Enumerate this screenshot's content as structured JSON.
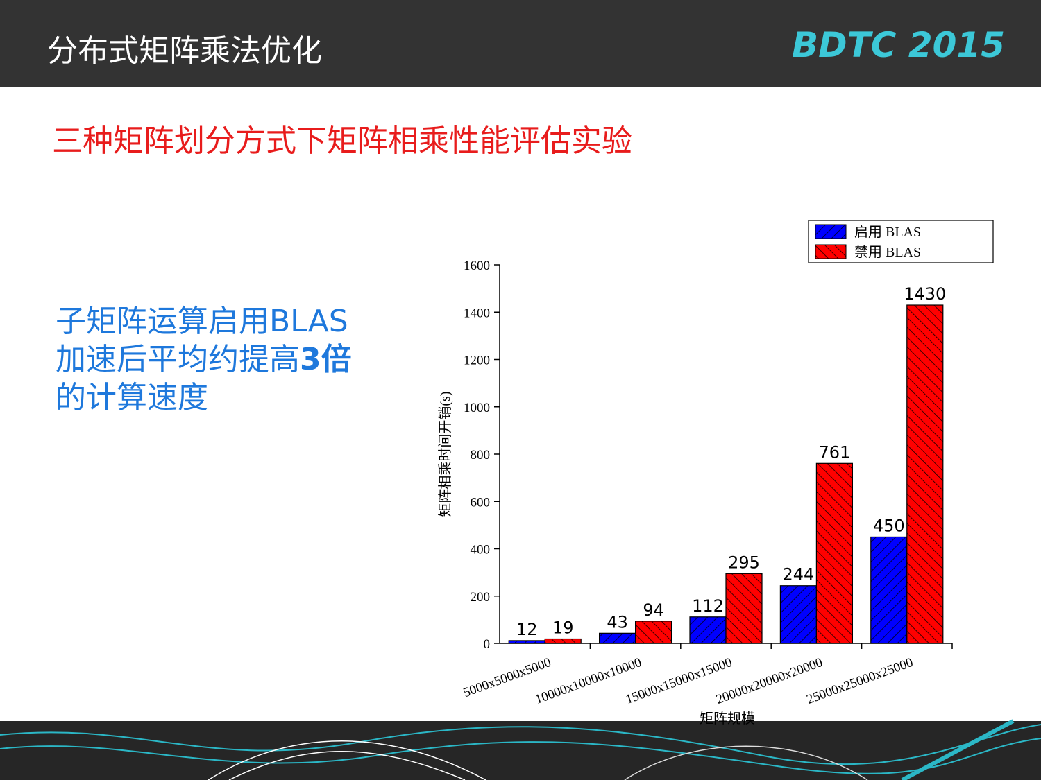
{
  "header": {
    "title": "分布式矩阵乘法优化",
    "logo": "BDTC 2015"
  },
  "subtitle": "三种矩阵划分方式下矩阵相乘性能评估实验",
  "note": [
    "子矩阵运算启用BLAS",
    "加速后平均约提高",
    "3倍",
    "的计算速度"
  ],
  "chart_data": {
    "type": "bar",
    "xlabel": "矩阵规模",
    "ylabel": "矩阵相乘时间开销(s)",
    "categories": [
      "5000x5000x5000",
      "10000x10000x10000",
      "15000x15000x15000",
      "20000x20000x20000",
      "25000x25000x25000"
    ],
    "series": [
      {
        "name": "启用  BLAS",
        "color": "#0000ff",
        "values": [
          12,
          43,
          112,
          244,
          450
        ]
      },
      {
        "name": "禁用 BLAS",
        "color": "#ff0000",
        "values": [
          19,
          94,
          295,
          761,
          1430
        ]
      }
    ],
    "ylim": [
      0,
      1600
    ],
    "yticks": [
      0,
      200,
      400,
      600,
      800,
      1000,
      1200,
      1400,
      1600
    ]
  }
}
